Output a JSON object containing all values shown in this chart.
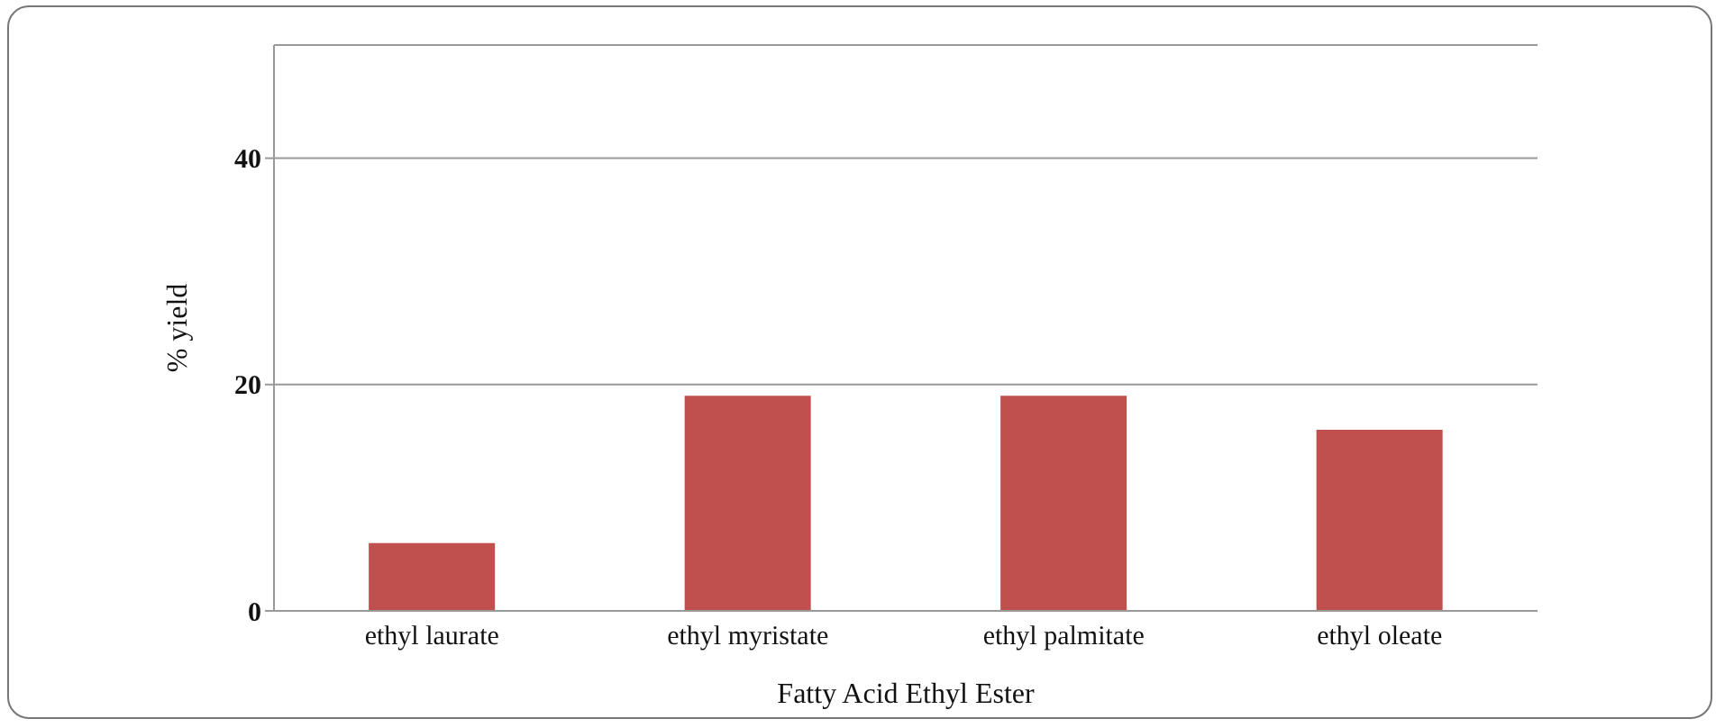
{
  "chart_data": {
    "type": "bar",
    "xlabel": "Fatty Acid Ethyl Ester",
    "ylabel": "% yield",
    "categories": [
      "ethyl laurate",
      "ethyl myristate",
      "ethyl palmitate",
      "ethyl oleate"
    ],
    "values": [
      6,
      19,
      19,
      16
    ],
    "color": "#c0504d",
    "ylim": [
      0,
      50
    ],
    "yticks": [
      0,
      20,
      40
    ],
    "grid": "y",
    "legend": false
  }
}
